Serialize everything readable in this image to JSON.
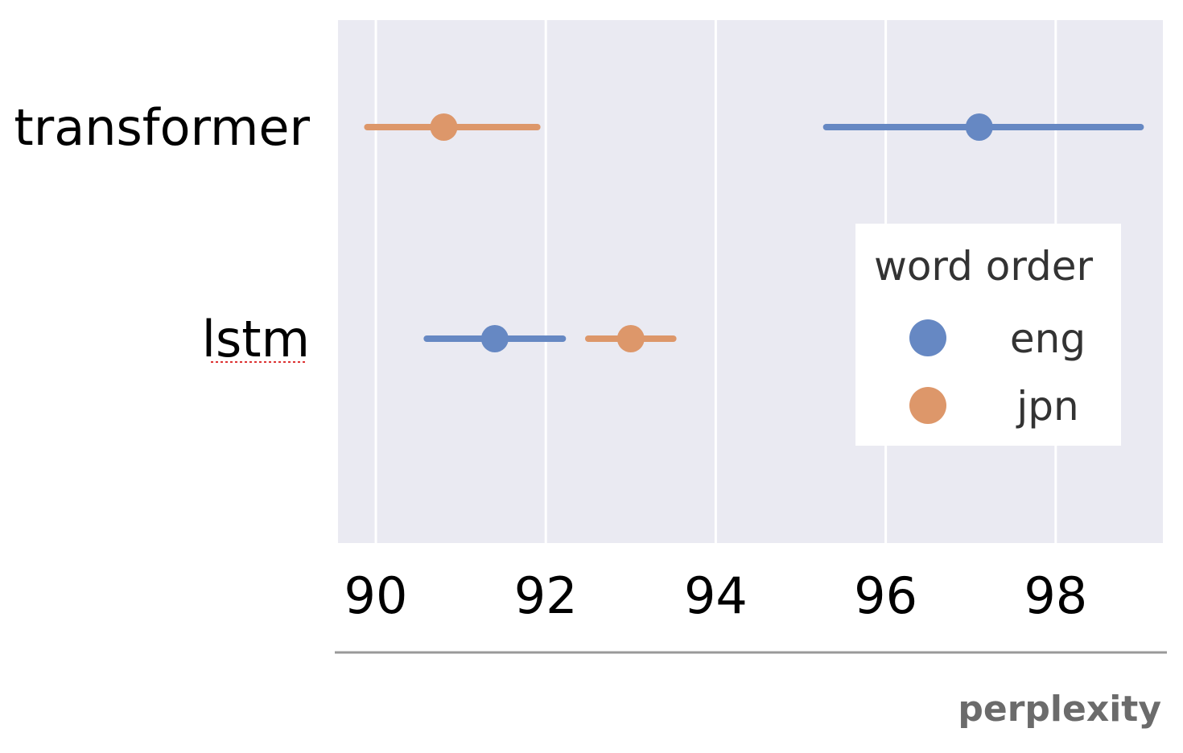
{
  "chart_data": {
    "type": "scatter",
    "subtype": "pointplot-with-error-bars",
    "orientation": "horizontal",
    "categories": [
      "transformer",
      "lstm"
    ],
    "xlabel": "perplexity",
    "xlim": [
      89.55,
      99.3
    ],
    "xticks": [
      90,
      92,
      94,
      96,
      98
    ],
    "grid": true,
    "legend": {
      "title": "word order",
      "placement": "right",
      "entries": [
        "eng",
        "jpn"
      ]
    },
    "series": [
      {
        "name": "eng",
        "color": "#6688c3",
        "points": [
          {
            "category": "transformer",
            "value": 97.1,
            "low": 95.3,
            "high": 99.0
          },
          {
            "category": "lstm",
            "value": 91.4,
            "low": 90.6,
            "high": 92.2
          }
        ]
      },
      {
        "name": "jpn",
        "color": "#dd976a",
        "points": [
          {
            "category": "transformer",
            "value": 90.8,
            "low": 89.9,
            "high": 91.9
          },
          {
            "category": "lstm",
            "value": 93.0,
            "low": 92.5,
            "high": 93.5
          }
        ]
      }
    ]
  }
}
